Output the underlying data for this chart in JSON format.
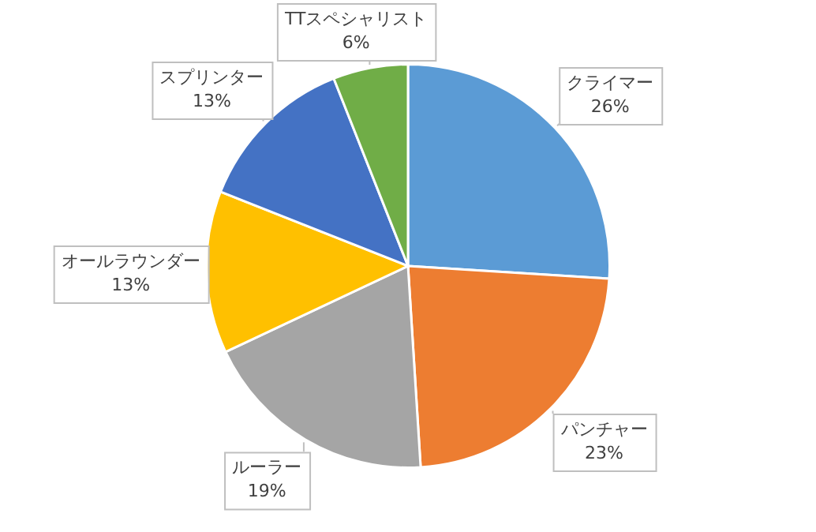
{
  "chart_data": {
    "type": "pie",
    "categories": [
      "クライマー",
      "パンチャー",
      "ルーラー",
      "オールラウンダー",
      "スプリンター",
      "TTスペシャリスト"
    ],
    "values": [
      26,
      23,
      19,
      13,
      13,
      6
    ],
    "value_labels": [
      "26%",
      "23%",
      "19%",
      "13%",
      "13%",
      "6%"
    ],
    "colors": [
      "#5b9bd5",
      "#ed7d31",
      "#a5a5a5",
      "#ffc000",
      "#4472c4",
      "#70ad47"
    ],
    "legend": false
  }
}
